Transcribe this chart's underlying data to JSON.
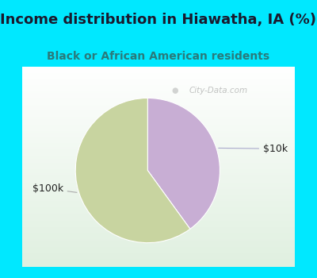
{
  "title": "Income distribution in Hiawatha, IA (%)",
  "subtitle": "Black or African American residents",
  "slices": [
    40,
    60
  ],
  "labels": [
    "$10k",
    "$100k"
  ],
  "colors": [
    "#c8aed4",
    "#c8d4a0"
  ],
  "bg_cyan": "#00e8ff",
  "title_color": "#1a1a2e",
  "subtitle_color": "#2a7a7a",
  "label_fontsize": 9,
  "title_fontsize": 13,
  "subtitle_fontsize": 10,
  "watermark": "City-Data.com",
  "startangle": 90
}
